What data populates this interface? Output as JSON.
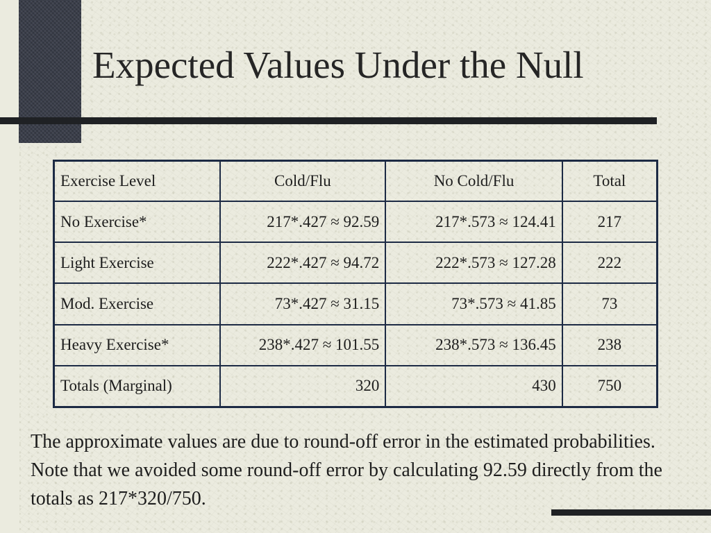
{
  "slide": {
    "title": "Expected Values Under the Null",
    "note": "The approximate values are due to round-off error in the estimated probabilities.  Note that we avoided some round-off error by calculating 92.59 directly from the totals as 217*320/750."
  },
  "table": {
    "headers": [
      "Exercise Level",
      "Cold/Flu",
      "No Cold/Flu",
      "Total"
    ],
    "rows": [
      [
        "No Exercise*",
        "217*.427 ≈ 92.59",
        "217*.573 ≈ 124.41",
        "217"
      ],
      [
        "Light Exercise",
        "222*.427 ≈ 94.72",
        "222*.573 ≈ 127.28",
        "222"
      ],
      [
        "Mod. Exercise",
        "73*.427 ≈ 31.15",
        "73*.573 ≈ 41.85",
        "73"
      ],
      [
        "Heavy Exercise*",
        "238*.427 ≈ 101.55",
        "238*.573 ≈ 136.45",
        "238"
      ],
      [
        "Totals (Marginal)",
        "320",
        "430",
        "750"
      ]
    ]
  },
  "colors": {
    "background": "#ebebdf",
    "accent_block": "#3a3e4a",
    "rule": "#1f2124",
    "table_border": "#1c2a44"
  }
}
